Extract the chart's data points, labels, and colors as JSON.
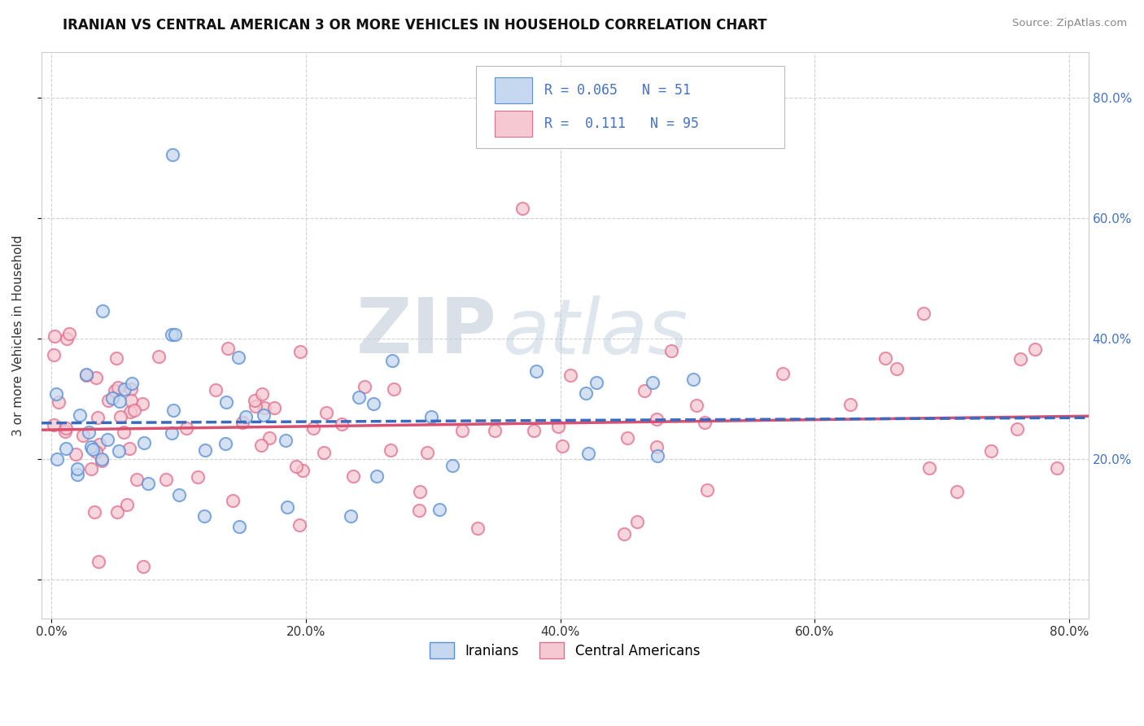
{
  "title": "IRANIAN VS CENTRAL AMERICAN 3 OR MORE VEHICLES IN HOUSEHOLD CORRELATION CHART",
  "source": "Source: ZipAtlas.com",
  "ylabel": "3 or more Vehicles in Household",
  "xlim_min": -0.008,
  "xlim_max": 0.815,
  "ylim_min": -0.065,
  "ylim_max": 0.875,
  "x_tick_vals": [
    0.0,
    0.2,
    0.4,
    0.6,
    0.8
  ],
  "x_tick_labels": [
    "0.0%",
    "20.0%",
    "40.0%",
    "60.0%",
    "80.0%"
  ],
  "y_tick_vals": [
    0.0,
    0.2,
    0.4,
    0.6,
    0.8
  ],
  "y_tick_labels_left": [
    "",
    "",
    "",
    "",
    ""
  ],
  "y_tick_labels_right": [
    "20.0%",
    "40.0%",
    "60.0%",
    "80.0%"
  ],
  "right_y_tick_vals": [
    0.2,
    0.4,
    0.6,
    0.8
  ],
  "iranian_face_color": "#c5d8f0",
  "iranian_edge_color": "#5b8fd4",
  "ca_face_color": "#f5c8d2",
  "ca_edge_color": "#e07090",
  "iranian_line_color": "#3a6abf",
  "ca_line_color": "#d95070",
  "legend_text_color": "#4472c4",
  "iranian_R": 0.065,
  "iranian_N": 51,
  "ca_R": 0.111,
  "ca_N": 95,
  "label_iranians": "Iranians",
  "label_ca": "Central Americans",
  "background_color": "#ffffff",
  "grid_color": "#cccccc",
  "watermark_zip": "ZIP",
  "watermark_atlas": "atlas",
  "watermark_color_zip": "#c0ccd8",
  "watermark_color_atlas": "#b8c8d8"
}
